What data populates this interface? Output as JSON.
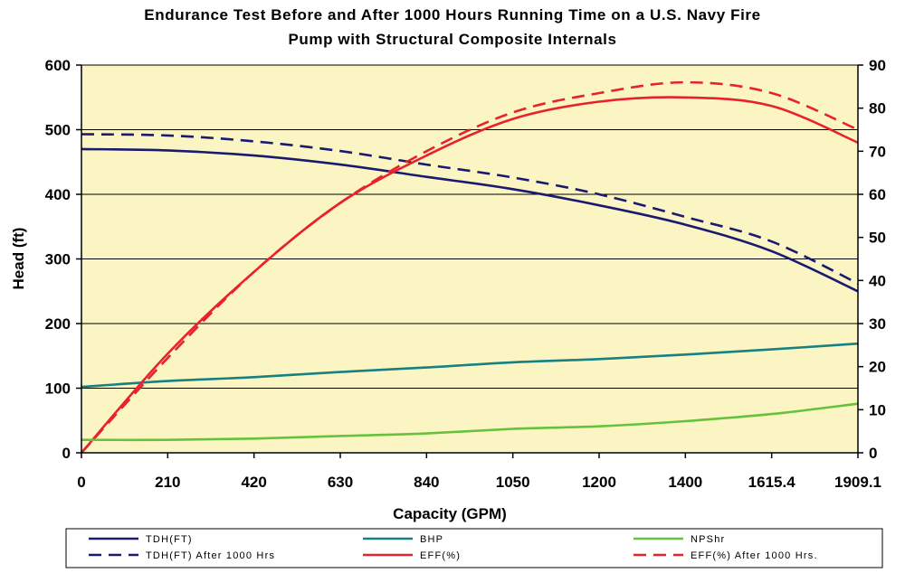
{
  "chart_data": {
    "type": "line",
    "title": "Endurance Test Before and After 1000 Hours Running Time on a U.S. Navy Fire Pump with Structural Composite Internals",
    "title_lines": [
      "Endurance Test Before and After 1000 Hours Running Time on a U.S. Navy Fire",
      "Pump with Structural Composite Internals"
    ],
    "xlabel": "Capacity (GPM)",
    "ylabel": "Head (ft)",
    "y2label": "",
    "categories": [
      "0",
      "210",
      "420",
      "630",
      "840",
      "1050",
      "1200",
      "1400",
      "1615.4",
      "1909.1"
    ],
    "ylim": [
      0,
      600
    ],
    "y2lim": [
      0,
      90
    ],
    "yticks": [
      "0",
      "100",
      "200",
      "300",
      "400",
      "500",
      "600"
    ],
    "y2ticks": [
      "0",
      "10",
      "20",
      "30",
      "40",
      "50",
      "60",
      "70",
      "80",
      "90"
    ],
    "plot_background": "#fbf5c4",
    "grid": "horizontal",
    "legend_position": "bottom",
    "series": [
      {
        "name": "TDH(FT)",
        "axis": "left",
        "color": "#1a1a6e",
        "dash": false,
        "values": [
          470,
          468,
          460,
          446,
          427,
          408,
          383,
          353,
          312,
          250
        ]
      },
      {
        "name": "TDH(FT) After 1000 Hrs",
        "axis": "left",
        "color": "#1a1a6e",
        "dash": true,
        "values": [
          493,
          491,
          482,
          467,
          446,
          426,
          400,
          365,
          327,
          262
        ]
      },
      {
        "name": "BHP",
        "axis": "left",
        "color": "#178080",
        "dash": false,
        "values": [
          102,
          111,
          117,
          125,
          132,
          140,
          145,
          152,
          160,
          169
        ]
      },
      {
        "name": "EFF(%)",
        "axis": "right",
        "color": "#e8222b",
        "dash": false,
        "values": [
          0,
          23,
          42,
          58,
          69,
          77.5,
          81.5,
          82.5,
          80.5,
          72
        ]
      },
      {
        "name": "NPShr",
        "axis": "left",
        "color": "#66c23c",
        "dash": false,
        "values": [
          20,
          20,
          22,
          26,
          30,
          37,
          41,
          49,
          60,
          76
        ]
      },
      {
        "name": "EFF(%) After 1000 Hrs.",
        "axis": "right",
        "color": "#e8222b",
        "dash": true,
        "values": [
          0,
          22,
          42,
          58,
          70,
          79,
          83.5,
          86,
          83.5,
          75
        ]
      }
    ],
    "legend": [
      "TDH(FT)",
      "BHP",
      "NPShr",
      "TDH(FT) After 1000 Hrs",
      "EFF(%)",
      "EFF(%) After 1000 Hrs."
    ]
  }
}
